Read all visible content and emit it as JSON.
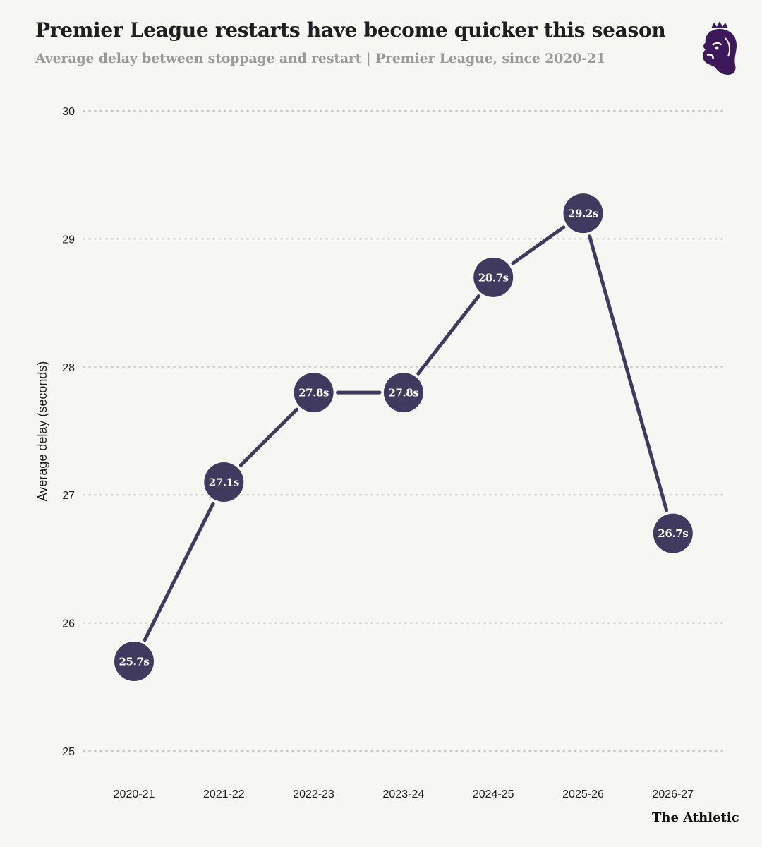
{
  "title": "Premier League restarts have become quicker this season",
  "subtitle": "Average delay between stoppage and restart | Premier League, since 2020-21",
  "source_label": "The Athletic",
  "logo_icon": "premier-league-lion-icon",
  "colors": {
    "background": "#f6f6f2",
    "series": "#3f3a5e",
    "grid": "#c9c9c5",
    "logo": "#3d195b"
  },
  "chart_data": {
    "type": "line",
    "title": "Premier League restarts have become quicker this season",
    "subtitle": "Average delay between stoppage and restart | Premier League, since 2020-21",
    "xlabel": "",
    "ylabel": "Average delay (seconds)",
    "ylim": [
      25,
      30
    ],
    "yticks": [
      "25",
      "26",
      "27",
      "28",
      "29",
      "30"
    ],
    "categories": [
      "2020-21",
      "2021-22",
      "2022-23",
      "2023-24",
      "2024-25",
      "2025-26",
      "2026-27"
    ],
    "series": [
      {
        "values": [
          25.7,
          27.1,
          27.8,
          27.8,
          28.7,
          29.2,
          26.7
        ],
        "labels": [
          "25.7s",
          "27.1s",
          "27.8s",
          "27.8s",
          "28.7s",
          "29.2s",
          "26.7s"
        ]
      }
    ],
    "grid": true,
    "grid_style": "dotted horizontal",
    "legend": "none"
  }
}
